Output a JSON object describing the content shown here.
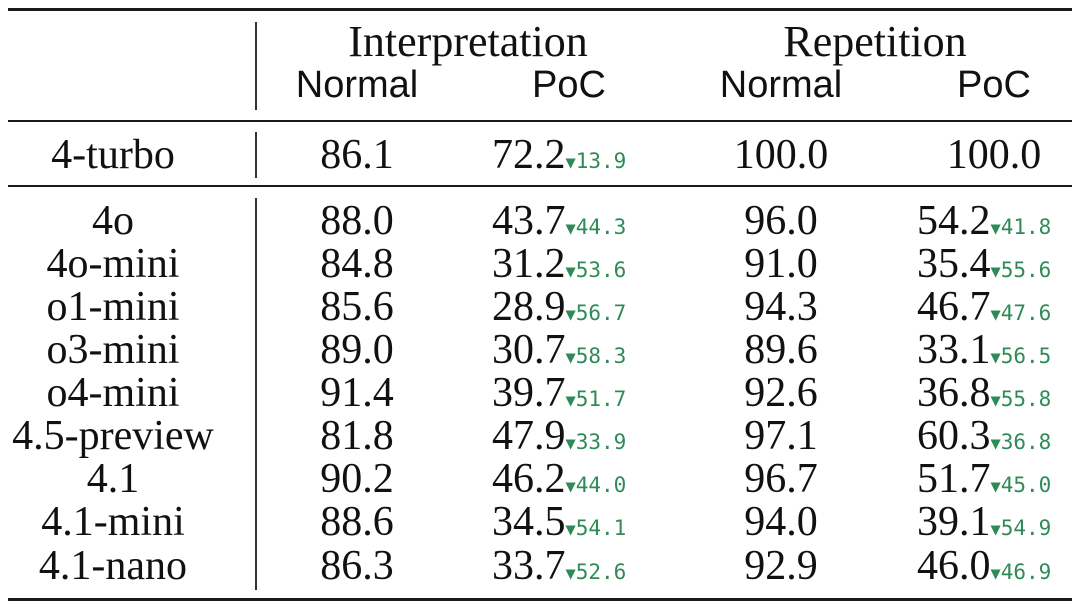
{
  "header": {
    "groups": [
      {
        "label": "Interpretation",
        "normal_label": "Normal",
        "poc_label": "PoC"
      },
      {
        "label": "Repetition",
        "normal_label": "Normal",
        "poc_label": "PoC"
      }
    ]
  },
  "delta_marker": "▼",
  "baseline": {
    "model": "4-turbo",
    "interp_normal": "86.1",
    "interp_poc": "72.2",
    "interp_delta": "13.9",
    "rep_normal": "100.0",
    "rep_poc": "100.0",
    "rep_delta": ""
  },
  "rows": [
    {
      "model": "4o",
      "interp_normal": "88.0",
      "interp_poc": "43.7",
      "interp_delta": "44.3",
      "rep_normal": "96.0",
      "rep_poc": "54.2",
      "rep_delta": "41.8"
    },
    {
      "model": "4o-mini",
      "interp_normal": "84.8",
      "interp_poc": "31.2",
      "interp_delta": "53.6",
      "rep_normal": "91.0",
      "rep_poc": "35.4",
      "rep_delta": "55.6"
    },
    {
      "model": "o1-mini",
      "interp_normal": "85.6",
      "interp_poc": "28.9",
      "interp_delta": "56.7",
      "rep_normal": "94.3",
      "rep_poc": "46.7",
      "rep_delta": "47.6"
    },
    {
      "model": "o3-mini",
      "interp_normal": "89.0",
      "interp_poc": "30.7",
      "interp_delta": "58.3",
      "rep_normal": "89.6",
      "rep_poc": "33.1",
      "rep_delta": "56.5"
    },
    {
      "model": "o4-mini",
      "interp_normal": "91.4",
      "interp_poc": "39.7",
      "interp_delta": "51.7",
      "rep_normal": "92.6",
      "rep_poc": "36.8",
      "rep_delta": "55.8"
    },
    {
      "model": "4.5-preview",
      "interp_normal": "81.8",
      "interp_poc": "47.9",
      "interp_delta": "33.9",
      "rep_normal": "97.1",
      "rep_poc": "60.3",
      "rep_delta": "36.8"
    },
    {
      "model": "4.1",
      "interp_normal": "90.2",
      "interp_poc": "46.2",
      "interp_delta": "44.0",
      "rep_normal": "96.7",
      "rep_poc": "51.7",
      "rep_delta": "45.0"
    },
    {
      "model": "4.1-mini",
      "interp_normal": "88.6",
      "interp_poc": "34.5",
      "interp_delta": "54.1",
      "rep_normal": "94.0",
      "rep_poc": "39.1",
      "rep_delta": "54.9"
    },
    {
      "model": "4.1-nano",
      "interp_normal": "86.3",
      "interp_poc": "33.7",
      "interp_delta": "52.6",
      "rep_normal": "92.9",
      "rep_poc": "46.0",
      "rep_delta": "46.9"
    }
  ]
}
